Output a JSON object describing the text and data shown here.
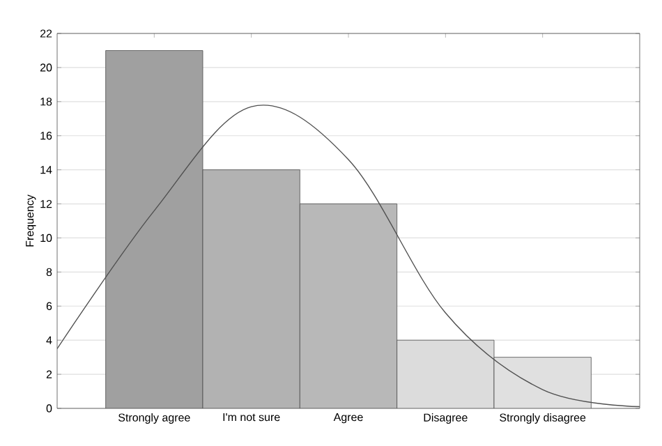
{
  "chart_data": {
    "type": "bar",
    "ylabel": "Frequency",
    "categories": [
      null,
      "Strongly agree",
      "I'm not sure",
      "Agree",
      "Disagree",
      "Strongly disagree",
      null
    ],
    "series": [
      {
        "values": [
          null,
          21,
          14,
          12,
          4,
          3,
          null
        ],
        "colors": [
          null,
          "#a0a0a0",
          "#b2b2b2",
          "#b8b8b8",
          "#dcdcdc",
          "#e0e0e0",
          null
        ]
      },
      {
        "type": "line",
        "color": "#505050",
        "values": [
          3.5,
          11.6,
          17.7,
          14.6,
          5.6,
          1.1,
          0.1
        ]
      }
    ],
    "ylim": [
      0,
      22
    ],
    "yticks": [
      0,
      2,
      4,
      6,
      8,
      10,
      12,
      14,
      16,
      18,
      20,
      22
    ],
    "grid": "y"
  }
}
